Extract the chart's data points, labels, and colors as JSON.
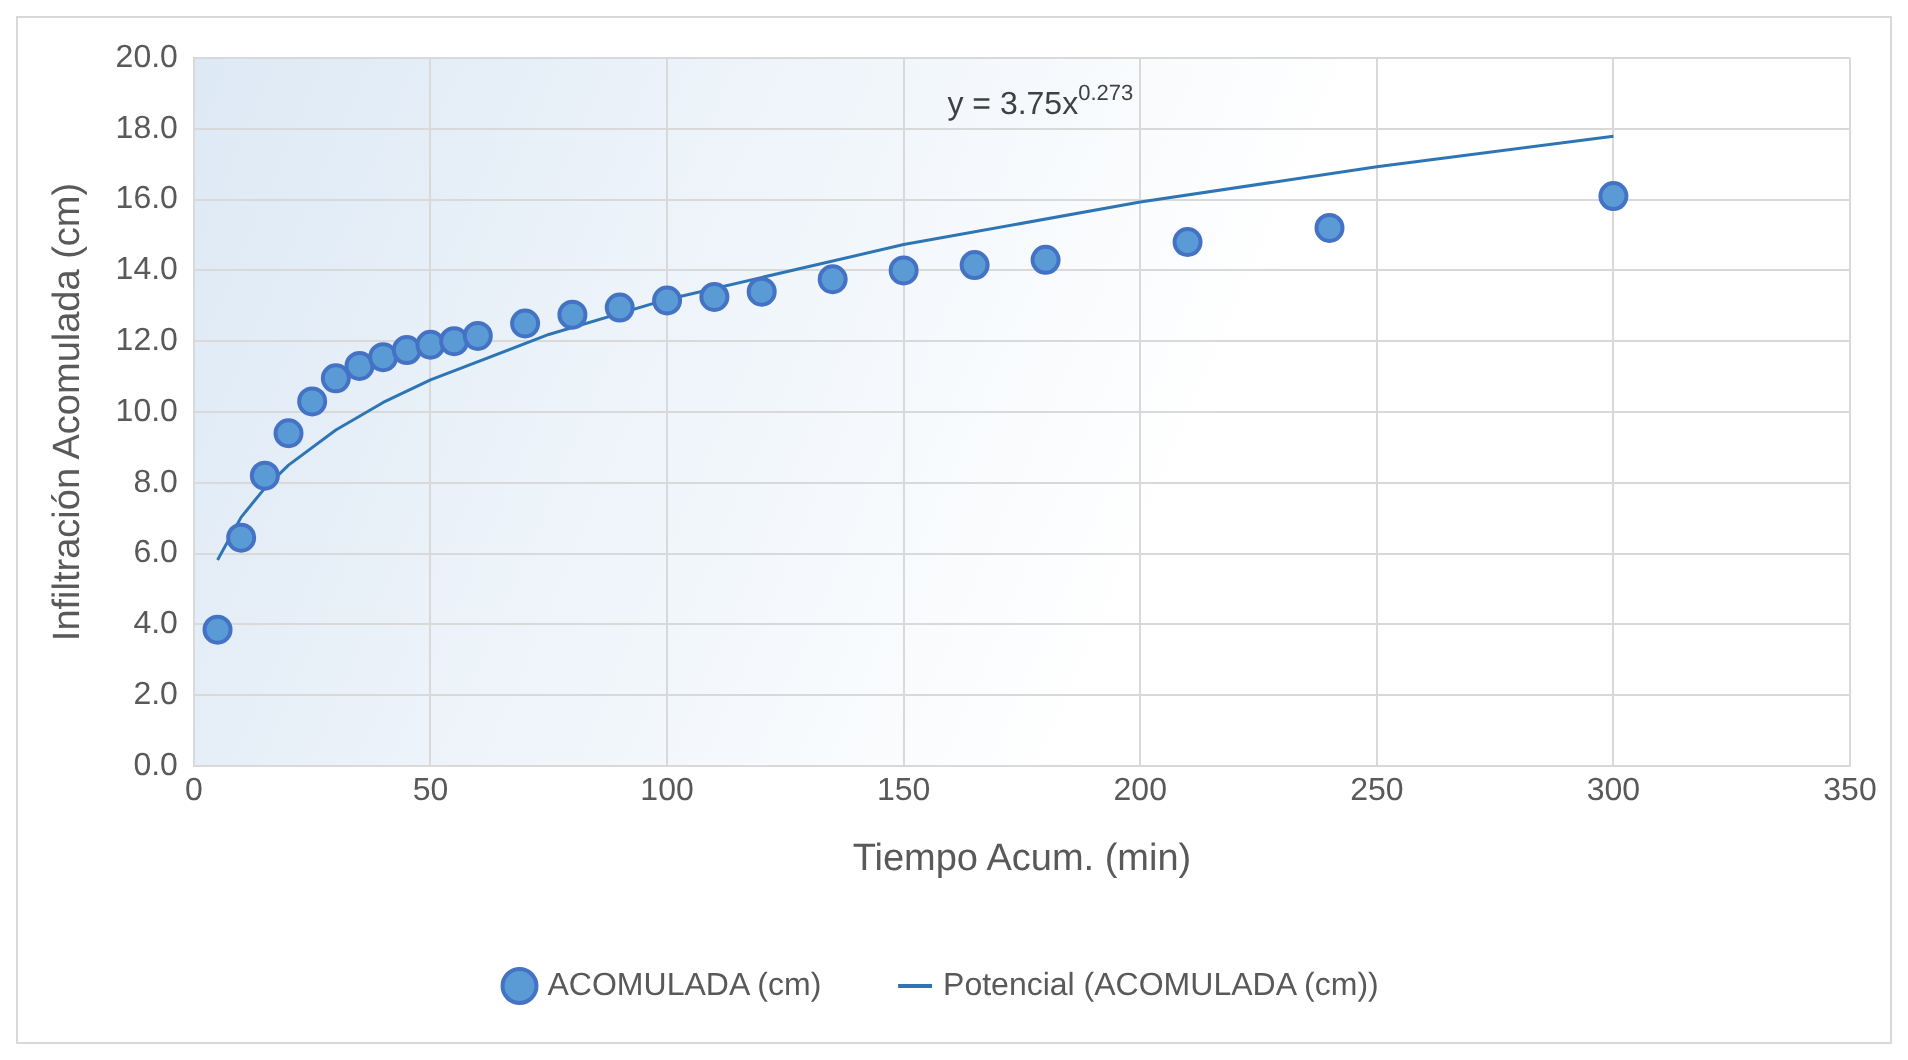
{
  "chart_data": {
    "type": "scatter",
    "xlabel": "Tiempo Acum. (min)",
    "ylabel": "Infiltración Acomulada (cm)",
    "x": [
      5,
      10,
      15,
      20,
      25,
      30,
      35,
      40,
      45,
      50,
      55,
      60,
      70,
      80,
      90,
      100,
      110,
      120,
      135,
      150,
      165,
      180,
      210,
      240,
      300
    ],
    "series": [
      {
        "name": "ACOMULADA (cm)",
        "type": "scatter",
        "marker": "circle",
        "color": "#5b9bd5",
        "values": [
          3.85,
          6.45,
          8.2,
          9.4,
          10.3,
          10.95,
          11.3,
          11.55,
          11.75,
          11.9,
          12.0,
          12.15,
          12.5,
          12.75,
          12.95,
          13.15,
          13.25,
          13.4,
          13.75,
          14.0,
          14.15,
          14.3,
          14.8,
          15.2,
          16.1
        ]
      },
      {
        "name": "Potencial (ACOMULADA (cm))",
        "type": "line",
        "marker": "none",
        "color": "#2e75b6",
        "x": [
          5,
          10,
          15,
          20,
          30,
          40,
          50,
          75,
          100,
          150,
          200,
          250,
          300
        ],
        "values": [
          5.82,
          7.03,
          7.85,
          8.5,
          9.49,
          10.27,
          10.91,
          12.19,
          13.18,
          14.73,
          15.93,
          16.93,
          17.79
        ]
      }
    ],
    "xlim": [
      0,
      350
    ],
    "xticks": [
      0,
      50,
      100,
      150,
      200,
      250,
      300,
      350
    ],
    "ylim": [
      0,
      20
    ],
    "yticks": [
      {
        "value": 0,
        "label": "0.0"
      },
      {
        "value": 2,
        "label": "2.0"
      },
      {
        "value": 4,
        "label": "4.0"
      },
      {
        "value": 6,
        "label": "6.0"
      },
      {
        "value": 8,
        "label": "8.0"
      },
      {
        "value": 10,
        "label": "10.0"
      },
      {
        "value": 12,
        "label": "12.0"
      },
      {
        "value": 14,
        "label": "14.0"
      },
      {
        "value": 16,
        "label": "16.0"
      },
      {
        "value": 18,
        "label": "18.0"
      },
      {
        "value": 20,
        "label": "20.0"
      }
    ],
    "annotations": [
      "y = 3.75x$^{0.273}$"
    ],
    "grid": true,
    "legend": "bottom"
  }
}
